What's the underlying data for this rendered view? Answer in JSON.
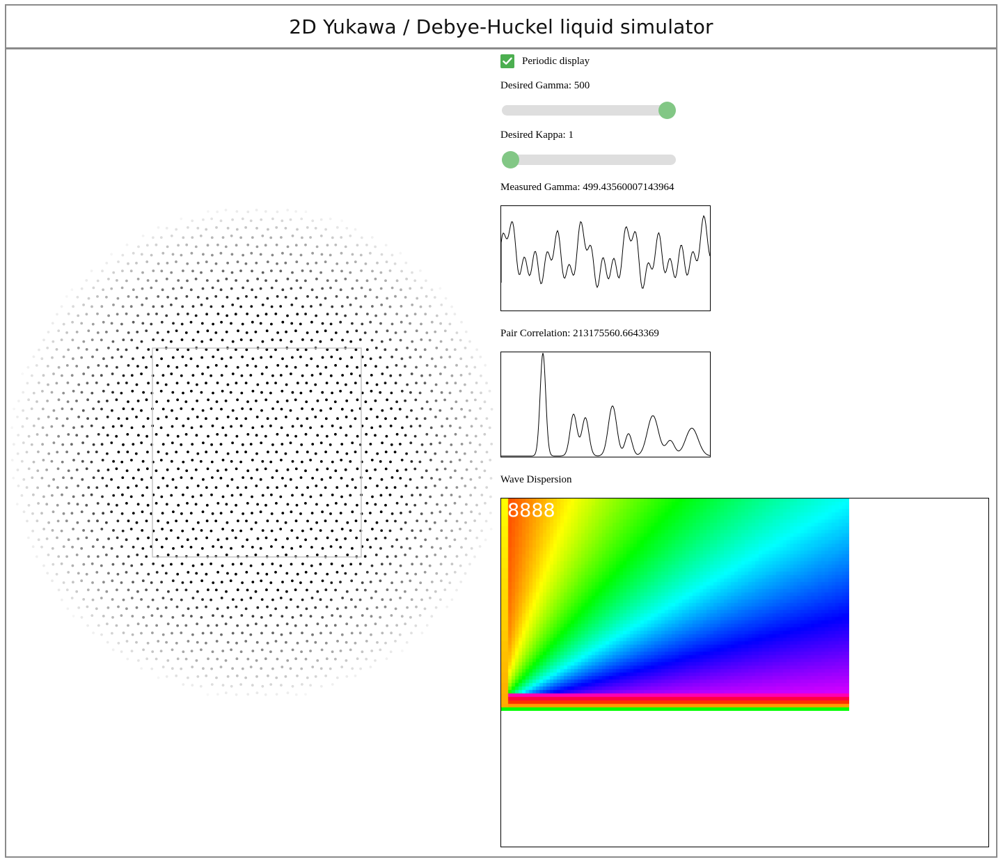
{
  "header": {
    "title": "2D Yukawa / Debye-Huckel liquid simulator"
  },
  "controls": {
    "periodic_display": {
      "label": "Periodic display",
      "checked": true
    },
    "gamma": {
      "label": "Desired Gamma: 500",
      "value": 500,
      "fraction": 0.95
    },
    "kappa": {
      "label": "Desired Kappa: 1",
      "value": 1,
      "fraction": 0.05
    }
  },
  "measured_gamma": {
    "label": "Measured Gamma: 499.43560007143964"
  },
  "pair_correlation": {
    "label": "Pair Correlation: 213175560.6643369"
  },
  "wave_dispersion": {
    "label": "Wave Dispersion",
    "overlay_text": "8888"
  },
  "colors": {
    "border": "#8a8a8a",
    "checkbox": "#4caf50",
    "slider_track": "#dedede",
    "slider_thumb": "#82c785",
    "particle": "#000000"
  },
  "icons": {
    "checkbox": "check-icon"
  }
}
